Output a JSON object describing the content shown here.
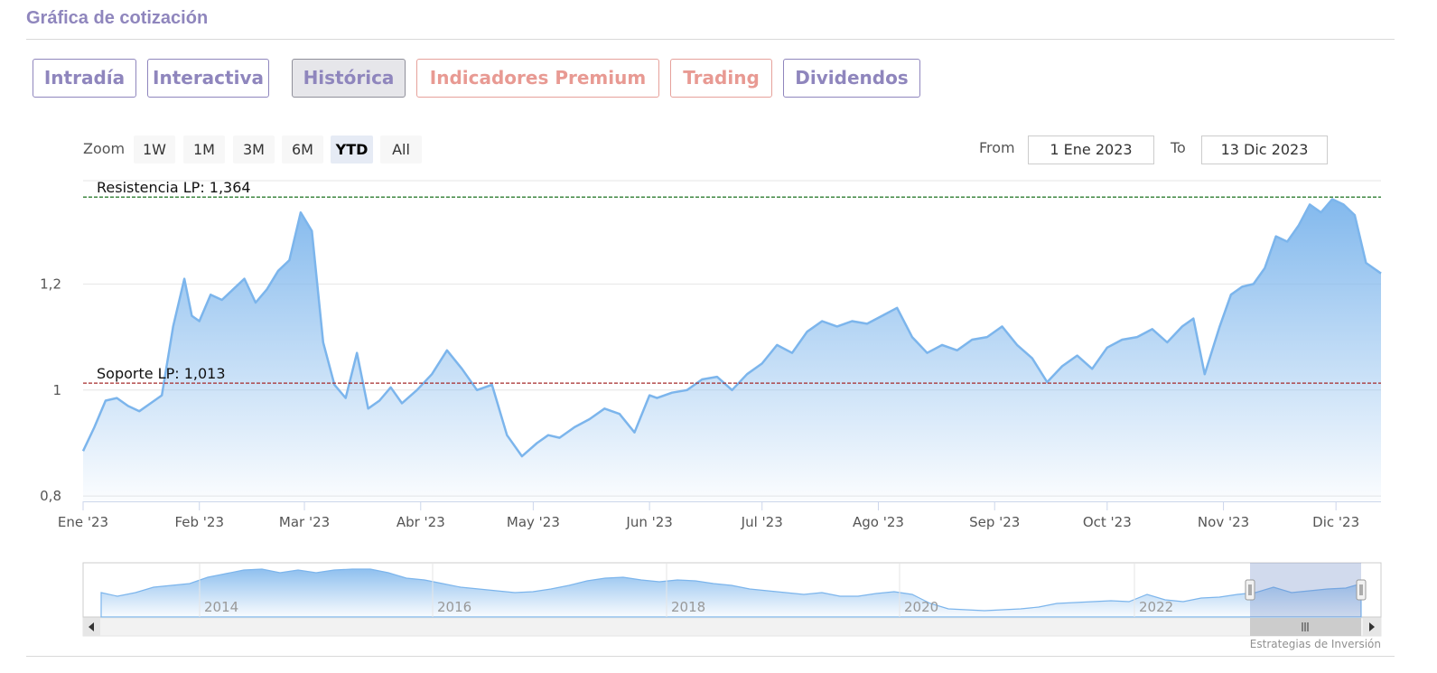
{
  "section": {
    "title": "Gráfica de cotización"
  },
  "tabs": [
    {
      "label": "Intradía",
      "style": "normal"
    },
    {
      "label": "Interactiva",
      "style": "normal"
    },
    {
      "label": "Histórica",
      "style": "active"
    },
    {
      "label": "Indicadores Premium",
      "style": "premium"
    },
    {
      "label": "Trading",
      "style": "premium"
    },
    {
      "label": "Dividendos",
      "style": "normal"
    }
  ],
  "range_selector": {
    "zoom_label": "Zoom",
    "buttons": [
      "1W",
      "1M",
      "3M",
      "6M",
      "YTD",
      "All"
    ],
    "selected": "YTD",
    "from_label": "From",
    "from_value": "1 Ene 2023",
    "to_label": "To",
    "to_value": "13 Dic 2023"
  },
  "colors": {
    "brand_purple": "#8f86bd",
    "premium_red": "#e89a93",
    "series_line": "#7cb5ec",
    "resistance_line": "#2e7d32",
    "support_line": "#a52a2a"
  },
  "chart_data": {
    "type": "area",
    "xlabel": "",
    "ylabel": "",
    "ylim": [
      0.79,
      1.395
    ],
    "y_ticks": [
      0.8,
      1.0,
      1.2
    ],
    "y_tick_labels": [
      "0,8",
      "1",
      "1,2"
    ],
    "x_range": [
      "2023-01-01",
      "2023-12-13"
    ],
    "x_ticks": [
      {
        "date": "2023-01-01",
        "label": "Ene '23"
      },
      {
        "date": "2023-02-01",
        "label": "Feb '23"
      },
      {
        "date": "2023-03-01",
        "label": "Mar '23"
      },
      {
        "date": "2023-04-01",
        "label": "Abr '23"
      },
      {
        "date": "2023-05-01",
        "label": "May '23"
      },
      {
        "date": "2023-06-01",
        "label": "Jun '23"
      },
      {
        "date": "2023-07-01",
        "label": "Jul '23"
      },
      {
        "date": "2023-08-01",
        "label": "Ago '23"
      },
      {
        "date": "2023-09-01",
        "label": "Sep '23"
      },
      {
        "date": "2023-10-01",
        "label": "Oct '23"
      },
      {
        "date": "2023-11-01",
        "label": "Nov '23"
      },
      {
        "date": "2023-12-01",
        "label": "Dic '23"
      }
    ],
    "grid": true,
    "series": [
      {
        "x": [
          "2023-01-01",
          "2023-01-04",
          "2023-01-07",
          "2023-01-10",
          "2023-01-13",
          "2023-01-16",
          "2023-01-19",
          "2023-01-22",
          "2023-01-25",
          "2023-01-28",
          "2023-01-30",
          "2023-02-01",
          "2023-02-04",
          "2023-02-07",
          "2023-02-10",
          "2023-02-13",
          "2023-02-16",
          "2023-02-19",
          "2023-02-22",
          "2023-02-25",
          "2023-02-28",
          "2023-03-03",
          "2023-03-06",
          "2023-03-09",
          "2023-03-12",
          "2023-03-15",
          "2023-03-18",
          "2023-03-21",
          "2023-03-24",
          "2023-03-27",
          "2023-03-31",
          "2023-04-04",
          "2023-04-08",
          "2023-04-12",
          "2023-04-16",
          "2023-04-20",
          "2023-04-24",
          "2023-04-28",
          "2023-05-02",
          "2023-05-05",
          "2023-05-08",
          "2023-05-12",
          "2023-05-16",
          "2023-05-20",
          "2023-05-24",
          "2023-05-28",
          "2023-06-01",
          "2023-06-03",
          "2023-06-07",
          "2023-06-11",
          "2023-06-15",
          "2023-06-19",
          "2023-06-23",
          "2023-06-27",
          "2023-07-01",
          "2023-07-05",
          "2023-07-09",
          "2023-07-13",
          "2023-07-17",
          "2023-07-21",
          "2023-07-25",
          "2023-07-29",
          "2023-08-02",
          "2023-08-06",
          "2023-08-10",
          "2023-08-14",
          "2023-08-18",
          "2023-08-22",
          "2023-08-26",
          "2023-08-30",
          "2023-09-03",
          "2023-09-07",
          "2023-09-11",
          "2023-09-15",
          "2023-09-19",
          "2023-09-23",
          "2023-09-27",
          "2023-10-01",
          "2023-10-05",
          "2023-10-09",
          "2023-10-13",
          "2023-10-17",
          "2023-10-21",
          "2023-10-24",
          "2023-10-27",
          "2023-10-31",
          "2023-11-03",
          "2023-11-06",
          "2023-11-09",
          "2023-11-12",
          "2023-11-15",
          "2023-11-18",
          "2023-11-21",
          "2023-11-24",
          "2023-11-27",
          "2023-11-30",
          "2023-12-03",
          "2023-12-06",
          "2023-12-09",
          "2023-12-13"
        ],
        "values": [
          0.885,
          0.93,
          0.98,
          0.985,
          0.97,
          0.96,
          0.975,
          0.99,
          1.12,
          1.21,
          1.14,
          1.13,
          1.18,
          1.17,
          1.19,
          1.21,
          1.165,
          1.19,
          1.225,
          1.245,
          1.335,
          1.3,
          1.09,
          1.01,
          0.985,
          1.07,
          0.965,
          0.98,
          1.005,
          0.975,
          1.0,
          1.03,
          1.075,
          1.04,
          1.0,
          1.01,
          0.915,
          0.875,
          0.9,
          0.915,
          0.91,
          0.93,
          0.945,
          0.965,
          0.955,
          0.92,
          0.99,
          0.985,
          0.995,
          1.0,
          1.02,
          1.025,
          1.0,
          1.03,
          1.05,
          1.085,
          1.07,
          1.11,
          1.13,
          1.12,
          1.13,
          1.125,
          1.14,
          1.155,
          1.1,
          1.07,
          1.085,
          1.075,
          1.095,
          1.1,
          1.12,
          1.085,
          1.06,
          1.015,
          1.045,
          1.065,
          1.04,
          1.08,
          1.095,
          1.1,
          1.115,
          1.09,
          1.12,
          1.135,
          1.03,
          1.12,
          1.18,
          1.195,
          1.2,
          1.23,
          1.29,
          1.28,
          1.31,
          1.35,
          1.335,
          1.36,
          1.35,
          1.33,
          1.24,
          1.22
        ]
      }
    ],
    "plot_lines": [
      {
        "label": "Resistencia LP: 1,364",
        "value": 1.364,
        "color": "#2e7d32"
      },
      {
        "label": "Soporte LP: 1,013",
        "value": 1.013,
        "color": "#a52a2a"
      }
    ],
    "navigator": {
      "tick_labels": [
        "2014",
        "2016",
        "2018",
        "2020",
        "2022"
      ],
      "selection": "2023"
    }
  },
  "credits": "Estrategias de Inversión"
}
